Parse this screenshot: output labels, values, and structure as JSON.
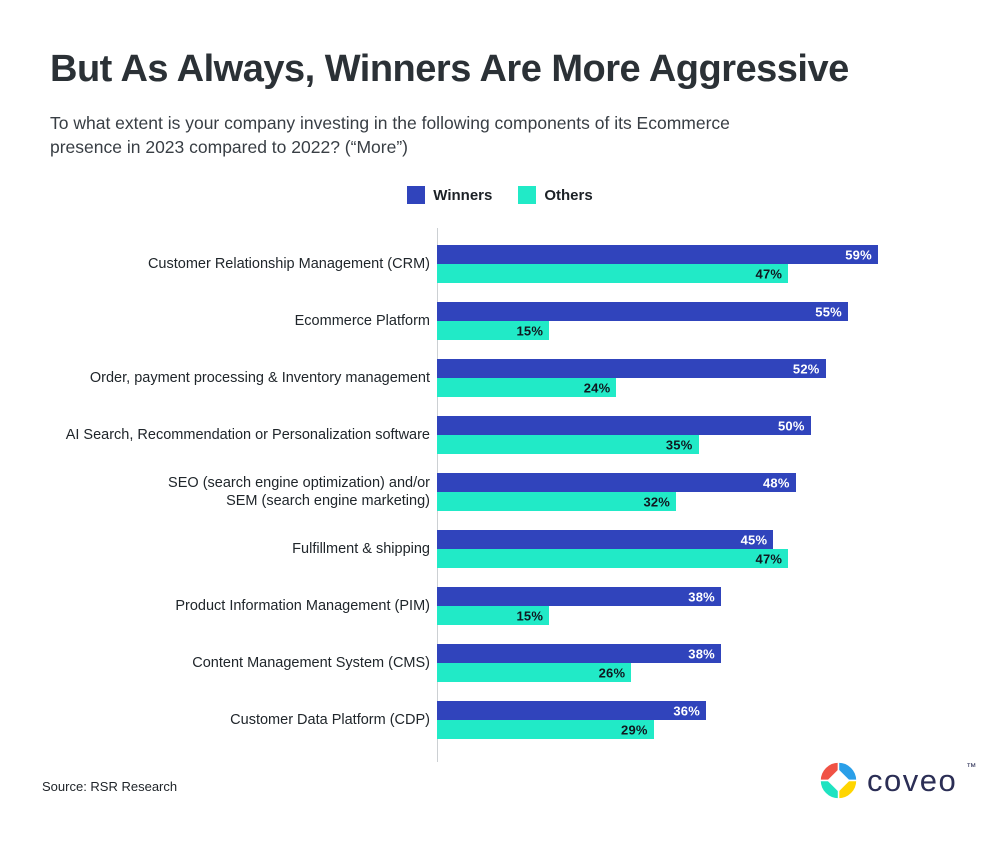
{
  "page": {
    "title": "But As Always, Winners Are More Aggressive",
    "subtitle": "To what extent is your company investing in the following components of its Ecommerce\npresence in 2023 compared to 2022? (“More”)",
    "source": "Source: RSR Research",
    "logo": {
      "wordmark": "coveo",
      "trademark": "™",
      "colors": {
        "red": "#F05245",
        "blue": "#2A9FE8",
        "teal": "#1FE3C1",
        "yellow": "#FFD500",
        "text": "#2B2E55"
      }
    }
  },
  "legend": {
    "items": [
      {
        "label": "Winners",
        "color": "#3044BC"
      },
      {
        "label": "Others",
        "color": "#21EAC7"
      }
    ]
  },
  "chart_data": {
    "type": "bar",
    "orientation": "horizontal",
    "title": "But As Always, Winners Are More Aggressive",
    "subtitle": "To what extent is your company investing in the following components of its Ecommerce presence in 2023 compared to 2022? (“More”)",
    "categories": [
      "Customer Relationship Management (CRM)",
      "Ecommerce Platform",
      "Order, payment processing & Inventory management",
      "AI Search, Recommendation or Personalization software",
      "SEO (search engine optimization) and/or\nSEM (search engine marketing)",
      "Fulfillment & shipping",
      "Product Information Management (PIM)",
      "Content Management System (CMS)",
      "Customer Data Platform (CDP)"
    ],
    "series": [
      {
        "name": "Winners",
        "color": "#3044BC",
        "value_label_color": "#FFFFFF",
        "values": [
          59,
          55,
          52,
          50,
          48,
          45,
          38,
          38,
          36
        ]
      },
      {
        "name": "Others",
        "color": "#21EAC7",
        "value_label_color": "#101820",
        "values": [
          47,
          15,
          24,
          35,
          32,
          47,
          15,
          26,
          29
        ]
      }
    ],
    "value_suffix": "%",
    "xlim": [
      0,
      70
    ],
    "grid": false,
    "legend_position": "top-center",
    "value_labels": "inside-end",
    "source": "RSR Research"
  }
}
